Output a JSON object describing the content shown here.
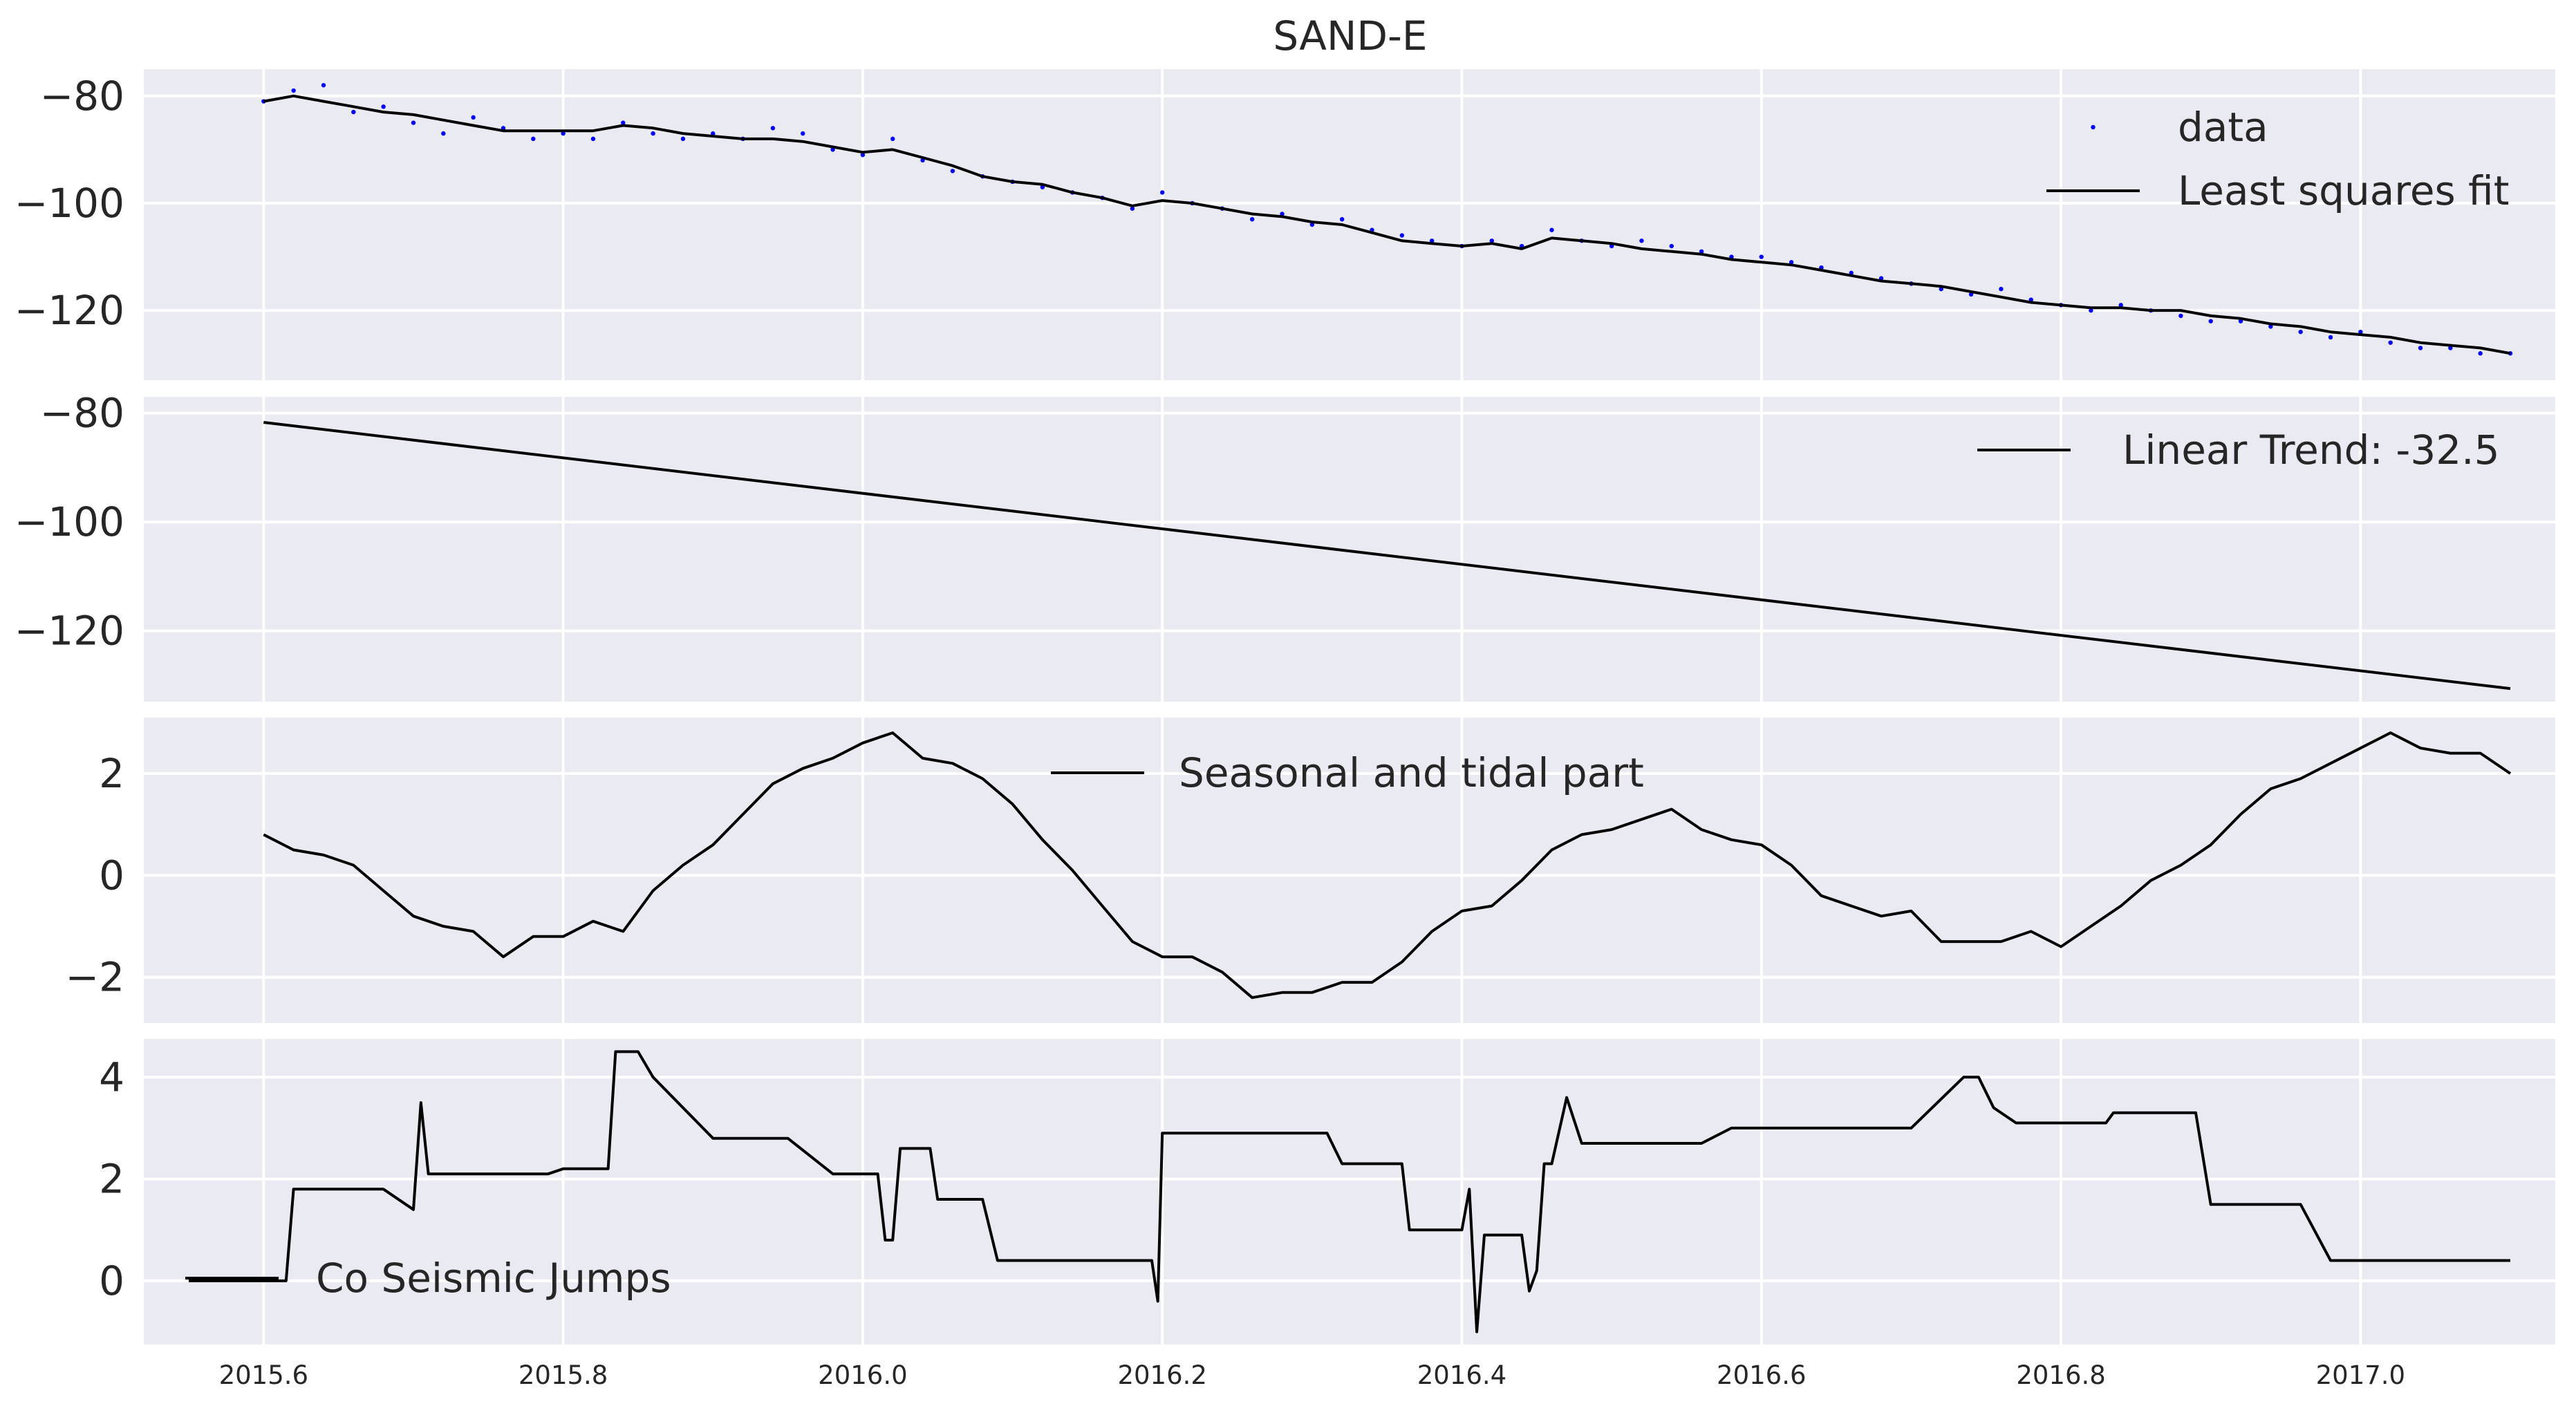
{
  "figure": {
    "title": "SAND-E"
  },
  "chart_data": [
    {
      "type": "scatter",
      "panel": "data-and-fit",
      "xlim": [
        2015.52,
        2017.13
      ],
      "ylim": [
        -133,
        -75
      ],
      "xticks": [
        2015.6,
        2015.8,
        2016.0,
        2016.2,
        2016.4,
        2016.6,
        2016.8,
        2017.0
      ],
      "yticks": [
        -80,
        -100,
        -120
      ],
      "grid": true,
      "legend_position": "top-right",
      "series": [
        {
          "name": "data",
          "kind": "points",
          "color": "#0000ff",
          "x": [
            2015.6,
            2015.62,
            2015.64,
            2015.66,
            2015.68,
            2015.7,
            2015.72,
            2015.74,
            2015.76,
            2015.78,
            2015.8,
            2015.82,
            2015.84,
            2015.86,
            2015.88,
            2015.9,
            2015.92,
            2015.94,
            2015.96,
            2015.98,
            2016.0,
            2016.02,
            2016.04,
            2016.06,
            2016.08,
            2016.1,
            2016.12,
            2016.14,
            2016.16,
            2016.18,
            2016.2,
            2016.22,
            2016.24,
            2016.26,
            2016.28,
            2016.3,
            2016.32,
            2016.34,
            2016.36,
            2016.38,
            2016.4,
            2016.42,
            2016.44,
            2016.46,
            2016.48,
            2016.5,
            2016.52,
            2016.54,
            2016.56,
            2016.58,
            2016.6,
            2016.62,
            2016.64,
            2016.66,
            2016.68,
            2016.7,
            2016.72,
            2016.74,
            2016.76,
            2016.78,
            2016.8,
            2016.82,
            2016.84,
            2016.86,
            2016.88,
            2016.9,
            2016.92,
            2016.94,
            2016.96,
            2016.98,
            2017.0,
            2017.02,
            2017.04,
            2017.06,
            2017.08,
            2017.1
          ],
          "y": [
            -81,
            -79,
            -78,
            -83,
            -82,
            -85,
            -87,
            -84,
            -86,
            -88,
            -87,
            -88,
            -85,
            -87,
            -88,
            -87,
            -88,
            -86,
            -87,
            -90,
            -91,
            -88,
            -92,
            -94,
            -95,
            -96,
            -97,
            -98,
            -99,
            -101,
            -98,
            -100,
            -101,
            -103,
            -102,
            -104,
            -103,
            -105,
            -106,
            -107,
            -108,
            -107,
            -108,
            -105,
            -107,
            -108,
            -107,
            -108,
            -109,
            -110,
            -110,
            -111,
            -112,
            -113,
            -114,
            -115,
            -116,
            -117,
            -116,
            -118,
            -119,
            -120,
            -119,
            -120,
            -121,
            -122,
            -122,
            -123,
            -124,
            -125,
            -124,
            -126,
            -127,
            -127,
            -128,
            -128
          ]
        },
        {
          "name": "Least squares fit",
          "kind": "line",
          "color": "#000000",
          "x": [
            2015.6,
            2015.62,
            2015.64,
            2015.66,
            2015.68,
            2015.7,
            2015.72,
            2015.74,
            2015.76,
            2015.78,
            2015.8,
            2015.82,
            2015.84,
            2015.86,
            2015.88,
            2015.9,
            2015.92,
            2015.94,
            2015.96,
            2015.98,
            2016.0,
            2016.02,
            2016.04,
            2016.06,
            2016.08,
            2016.1,
            2016.12,
            2016.14,
            2016.16,
            2016.18,
            2016.2,
            2016.22,
            2016.24,
            2016.26,
            2016.28,
            2016.3,
            2016.32,
            2016.34,
            2016.36,
            2016.38,
            2016.4,
            2016.42,
            2016.44,
            2016.46,
            2016.48,
            2016.5,
            2016.52,
            2016.54,
            2016.56,
            2016.58,
            2016.6,
            2016.62,
            2016.64,
            2016.66,
            2016.68,
            2016.7,
            2016.72,
            2016.74,
            2016.76,
            2016.78,
            2016.8,
            2016.82,
            2016.84,
            2016.86,
            2016.88,
            2016.9,
            2016.92,
            2016.94,
            2016.96,
            2016.98,
            2017.0,
            2017.02,
            2017.04,
            2017.06,
            2017.08,
            2017.1
          ],
          "y": [
            -81,
            -80,
            -81,
            -82,
            -83,
            -83.5,
            -84.5,
            -85.5,
            -86.5,
            -86.5,
            -86.5,
            -86.5,
            -85.5,
            -86,
            -87,
            -87.5,
            -88,
            -88,
            -88.5,
            -89.5,
            -90.5,
            -90,
            -91.5,
            -93,
            -95,
            -96,
            -96.5,
            -98,
            -99,
            -100.5,
            -99.5,
            -100,
            -101,
            -102,
            -102.5,
            -103.5,
            -104,
            -105.5,
            -107,
            -107.5,
            -108,
            -107.5,
            -108.5,
            -106.5,
            -107,
            -107.5,
            -108.5,
            -109,
            -109.5,
            -110.5,
            -111,
            -111.5,
            -112.5,
            -113.5,
            -114.5,
            -115,
            -115.5,
            -116.5,
            -117.5,
            -118.5,
            -119,
            -119.5,
            -119.5,
            -120,
            -120,
            -121,
            -121.5,
            -122.5,
            -123,
            -124,
            -124.5,
            -125,
            -126,
            -126.5,
            -127,
            -128
          ]
        }
      ]
    },
    {
      "type": "line",
      "panel": "linear-trend",
      "xlim": [
        2015.52,
        2017.13
      ],
      "ylim": [
        -133,
        -77
      ],
      "yticks": [
        -80,
        -100,
        -120
      ],
      "grid": true,
      "legend_position": "top-right",
      "series": [
        {
          "name": "Linear Trend: -32.5",
          "color": "#000000",
          "x": [
            2015.6,
            2017.1
          ],
          "y": [
            -81.7,
            -130.6
          ]
        }
      ]
    },
    {
      "type": "line",
      "panel": "seasonal",
      "xlim": [
        2015.52,
        2017.13
      ],
      "ylim": [
        -2.9,
        3.1
      ],
      "yticks": [
        2,
        0,
        -2
      ],
      "grid": true,
      "legend_position": "top-center",
      "series": [
        {
          "name": "Seasonal and tidal part",
          "color": "#000000",
          "x": [
            2015.6,
            2015.62,
            2015.64,
            2015.66,
            2015.68,
            2015.7,
            2015.72,
            2015.74,
            2015.76,
            2015.78,
            2015.8,
            2015.82,
            2015.84,
            2015.86,
            2015.88,
            2015.9,
            2015.92,
            2015.94,
            2015.96,
            2015.98,
            2016.0,
            2016.02,
            2016.04,
            2016.06,
            2016.08,
            2016.1,
            2016.12,
            2016.14,
            2016.16,
            2016.18,
            2016.2,
            2016.22,
            2016.24,
            2016.26,
            2016.28,
            2016.3,
            2016.32,
            2016.34,
            2016.36,
            2016.38,
            2016.4,
            2016.42,
            2016.44,
            2016.46,
            2016.48,
            2016.5,
            2016.52,
            2016.54,
            2016.56,
            2016.58,
            2016.6,
            2016.62,
            2016.64,
            2016.66,
            2016.68,
            2016.7,
            2016.72,
            2016.74,
            2016.76,
            2016.78,
            2016.8,
            2016.82,
            2016.84,
            2016.86,
            2016.88,
            2016.9,
            2016.92,
            2016.94,
            2016.96,
            2016.98,
            2017.0,
            2017.02,
            2017.04,
            2017.06,
            2017.08,
            2017.1
          ],
          "y": [
            0.8,
            0.5,
            0.4,
            0.2,
            -0.3,
            -0.8,
            -1.0,
            -1.1,
            -1.6,
            -1.2,
            -1.2,
            -0.9,
            -1.1,
            -0.3,
            0.2,
            0.6,
            1.2,
            1.8,
            2.1,
            2.3,
            2.6,
            2.8,
            2.3,
            2.2,
            1.9,
            1.4,
            0.7,
            0.1,
            -0.6,
            -1.3,
            -1.6,
            -1.6,
            -1.9,
            -2.4,
            -2.3,
            -2.3,
            -2.1,
            -2.1,
            -1.7,
            -1.1,
            -0.7,
            -0.6,
            -0.1,
            0.5,
            0.8,
            0.9,
            1.1,
            1.3,
            0.9,
            0.7,
            0.6,
            0.2,
            -0.4,
            -0.6,
            -0.8,
            -0.7,
            -1.3,
            -1.3,
            -1.3,
            -1.1,
            -1.4,
            -1.0,
            -0.6,
            -0.1,
            0.2,
            0.6,
            1.2,
            1.7,
            1.9,
            2.2,
            2.5,
            2.8,
            2.5,
            2.4,
            2.4,
            2.0
          ]
        }
      ]
    },
    {
      "type": "line",
      "panel": "co-seismic",
      "xlim": [
        2015.52,
        2017.13
      ],
      "ylim": [
        -1.25,
        4.75
      ],
      "yticks": [
        4,
        2,
        0
      ],
      "grid": true,
      "legend_position": "bottom-left",
      "series": [
        {
          "name": "Co Seismic Jumps",
          "color": "#000000",
          "x": [
            2015.55,
            2015.615,
            2015.62,
            2015.68,
            2015.7,
            2015.705,
            2015.71,
            2015.79,
            2015.8,
            2015.83,
            2015.835,
            2015.85,
            2015.86,
            2015.9,
            2015.95,
            2015.98,
            2016.01,
            2016.015,
            2016.02,
            2016.025,
            2016.045,
            2016.05,
            2016.06,
            2016.08,
            2016.09,
            2016.14,
            2016.193,
            2016.197,
            2016.2,
            2016.27,
            2016.31,
            2016.315,
            2016.32,
            2016.36,
            2016.365,
            2016.4,
            2016.405,
            2016.41,
            2016.415,
            2016.44,
            2016.445,
            2016.45,
            2016.455,
            2016.46,
            2016.47,
            2016.48,
            2016.5,
            2016.56,
            2016.58,
            2016.7,
            2016.735,
            2016.745,
            2016.755,
            2016.77,
            2016.785,
            2016.83,
            2016.835,
            2016.86,
            2016.89,
            2016.9,
            2016.96,
            2016.98,
            2017.05,
            2017.1
          ],
          "y": [
            0.0,
            0.0,
            1.8,
            1.8,
            1.4,
            3.5,
            2.1,
            2.1,
            2.2,
            2.2,
            4.5,
            4.5,
            4.0,
            2.8,
            2.8,
            2.1,
            2.1,
            0.8,
            0.8,
            2.6,
            2.6,
            1.6,
            1.6,
            1.6,
            0.4,
            0.4,
            0.4,
            -0.4,
            2.9,
            2.9,
            2.9,
            2.6,
            2.3,
            2.3,
            1.0,
            1.0,
            1.8,
            -1.0,
            0.9,
            0.9,
            -0.2,
            0.2,
            2.3,
            2.3,
            3.6,
            2.7,
            2.7,
            2.7,
            3.0,
            3.0,
            4.0,
            4.0,
            3.4,
            3.1,
            3.1,
            3.1,
            3.3,
            3.3,
            3.3,
            1.5,
            1.5,
            0.4,
            0.4,
            0.4
          ]
        }
      ]
    }
  ]
}
